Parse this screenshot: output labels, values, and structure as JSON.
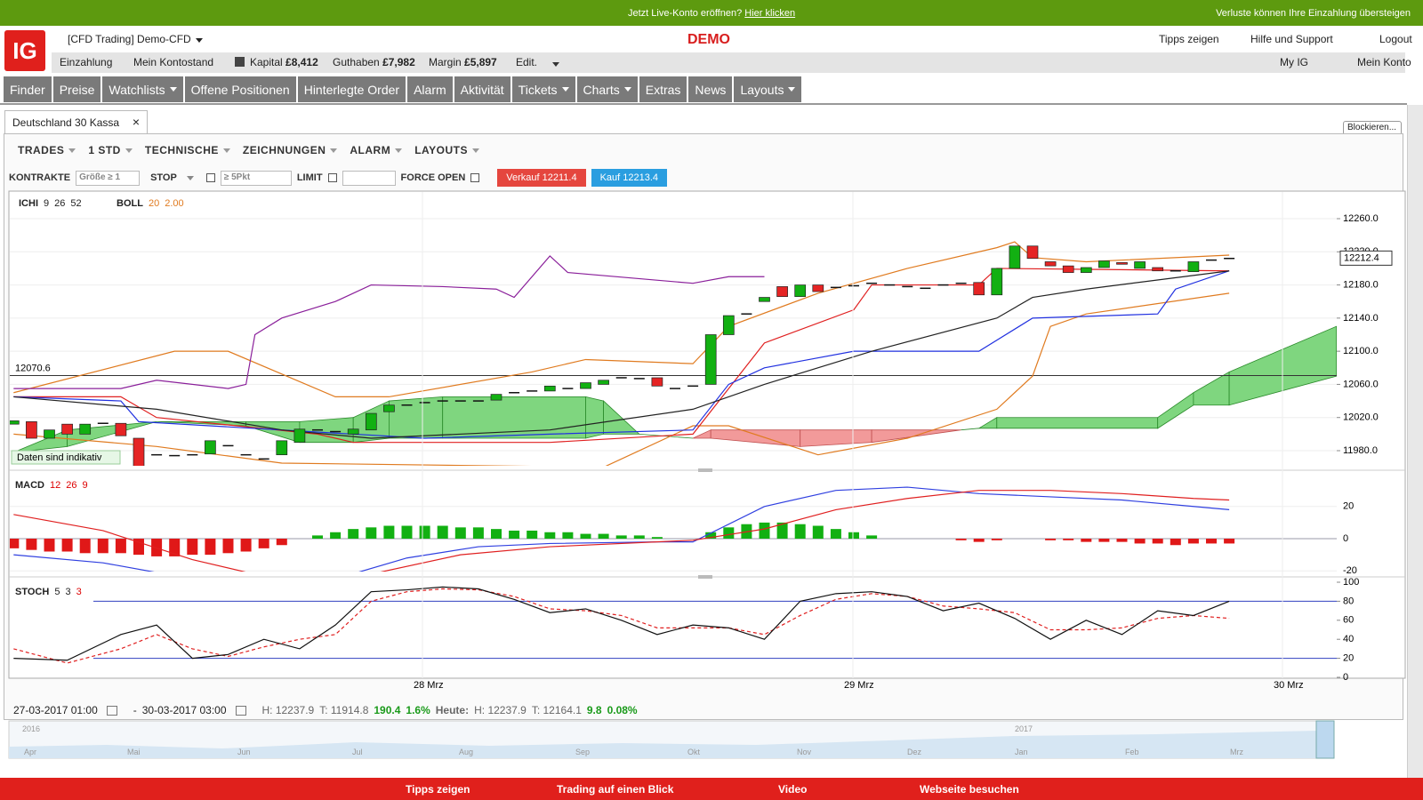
{
  "banner": {
    "text": "Jetzt Live-Konto eröffnen?",
    "link": "Hier klicken",
    "warning": "Verluste können Ihre Einzahlung übersteigen"
  },
  "header": {
    "logo": "IG",
    "account": "[CFD Trading] Demo-CFD",
    "mode": "DEMO",
    "links": [
      "Tipps zeigen",
      "Hilfe und Support",
      "Logout"
    ]
  },
  "account_bar": {
    "buttons": [
      "Einzahlung",
      "Mein Kontostand"
    ],
    "kapital_label": "Kapital",
    "kapital": "£8,412",
    "guthaben_label": "Guthaben",
    "guthaben": "£7,982",
    "margin_label": "Margin",
    "margin": "£5,897",
    "edit": "Edit.",
    "right": [
      "My IG",
      "Mein Konto"
    ]
  },
  "nav": [
    "Finder",
    "Preise",
    "Watchlists",
    "Offene Positionen",
    "Hinterlegte Order",
    "Alarm",
    "Aktivität",
    "Tickets",
    "Charts",
    "Extras",
    "News",
    "Layouts"
  ],
  "tab": "Deutschland 30 Kassa",
  "blockieren": "Blockieren...",
  "toolbar": [
    "TRADES",
    "1 STD",
    "TECHNISCHE",
    "ZEICHNUNGEN",
    "ALARM",
    "LAYOUTS"
  ],
  "order": {
    "kontrakte": "KONTRAKTE",
    "size_placeholder": "Größe ≥ 1",
    "stop": "STOP",
    "stop_placeholder": "≥ 5Pkt",
    "limit": "LIMIT",
    "force_open": "FORCE OPEN",
    "sell": "Verkauf 12211.4",
    "buy": "Kauf 12213.4"
  },
  "chart": {
    "ichi": {
      "name": "ICHI",
      "params": [
        9,
        26,
        52
      ]
    },
    "boll": {
      "name": "BOLL",
      "params": [
        20,
        "2.00"
      ]
    },
    "level": 12070.6,
    "note": "Daten sind indikativ",
    "current_price": 12212.4,
    "yticks": [
      {
        "value": 12260,
        "label": "12260.0"
      },
      {
        "value": 12220,
        "label": "12220.0"
      },
      {
        "value": 12180,
        "label": "12180.0"
      },
      {
        "value": 12140,
        "label": "12140.0"
      },
      {
        "value": 12100,
        "label": "12100.0"
      },
      {
        "value": 12060,
        "label": "12060.0"
      },
      {
        "value": 12020,
        "label": "12020.0"
      },
      {
        "value": 11980,
        "label": "11980.0"
      }
    ],
    "candles": [
      [
        12012,
        12016
      ],
      [
        12015,
        11995
      ],
      [
        11995,
        12005
      ],
      [
        12012,
        12000
      ],
      [
        12000,
        12012
      ],
      [
        12013,
        12013
      ],
      [
        12013,
        11998
      ],
      [
        11995,
        11958
      ],
      [
        11975,
        11975
      ],
      [
        11974,
        11974
      ],
      [
        11975,
        11975
      ],
      [
        11976,
        11992
      ],
      [
        11986,
        11986
      ],
      [
        11975,
        11975
      ],
      [
        11970,
        11970
      ],
      [
        11975,
        11992
      ],
      [
        11990,
        12006
      ],
      [
        12005,
        12005
      ],
      [
        12003,
        12003
      ],
      [
        12000,
        12006
      ],
      [
        12005,
        12025
      ],
      [
        12027,
        12035
      ],
      [
        12035,
        12035
      ],
      [
        12038,
        12038
      ],
      [
        12040,
        12040
      ],
      [
        12040,
        12040
      ],
      [
        12040,
        12040
      ],
      [
        12041,
        12048
      ],
      [
        12050,
        12050
      ],
      [
        12052,
        12052
      ],
      [
        12052,
        12058
      ],
      [
        12055,
        12055
      ],
      [
        12055,
        12062
      ],
      [
        12060,
        12065
      ],
      [
        12068,
        12068
      ],
      [
        12067,
        12067
      ],
      [
        12068,
        12058
      ],
      [
        12055,
        12055
      ],
      [
        12058,
        12058
      ],
      [
        12060,
        12120
      ],
      [
        12120,
        12143
      ],
      [
        12145,
        12145
      ],
      [
        12160,
        12165
      ],
      [
        12178,
        12166
      ],
      [
        12166,
        12180
      ],
      [
        12180,
        12172
      ],
      [
        12177,
        12177
      ],
      [
        12179,
        12179
      ],
      [
        12182,
        12182
      ],
      [
        12180,
        12180
      ],
      [
        12178,
        12178
      ],
      [
        12176,
        12176
      ],
      [
        12180,
        12180
      ],
      [
        12182,
        12182
      ],
      [
        12183,
        12168
      ],
      [
        12168,
        12200
      ],
      [
        12200,
        12227
      ],
      [
        12227,
        12212
      ],
      [
        12208,
        12203
      ],
      [
        12203,
        12195
      ],
      [
        12195,
        12201
      ],
      [
        12201,
        12209
      ],
      [
        12207,
        12205
      ],
      [
        12200,
        12208
      ],
      [
        12201,
        12197
      ],
      [
        12197,
        12197
      ],
      [
        12196,
        12208
      ],
      [
        12210,
        12210
      ],
      [
        12212,
        12212
      ]
    ],
    "cloud": [
      [
        0,
        11978,
        11978
      ],
      [
        3,
        12005,
        11985
      ],
      [
        8,
        12015,
        12015
      ],
      [
        13,
        12015,
        12010
      ],
      [
        16,
        12015,
        11990
      ],
      [
        19,
        12020,
        11990
      ],
      [
        21,
        12040,
        11995
      ],
      [
        24,
        12045,
        11995
      ],
      [
        32,
        12045,
        11995
      ],
      [
        33,
        12040,
        12000
      ],
      [
        35,
        12000,
        12000
      ],
      [
        38,
        11995,
        11995
      ],
      [
        39,
        11995,
        12005
      ],
      [
        44,
        11985,
        12005
      ],
      [
        48,
        11990,
        12005
      ],
      [
        53,
        12005,
        12005
      ],
      [
        54,
        12007,
        12007
      ],
      [
        55,
        12020,
        12007
      ],
      [
        64,
        12020,
        12007
      ],
      [
        66,
        12050,
        12035
      ],
      [
        68,
        12075,
        12035
      ],
      [
        74,
        12130,
        12070
      ]
    ],
    "lines": [
      {
        "color": "#e07b20",
        "points": [
          [
            0,
            12050
          ],
          [
            9,
            12100
          ],
          [
            12,
            12100
          ],
          [
            18,
            12045
          ],
          [
            21,
            12045
          ],
          [
            29,
            12075
          ],
          [
            32,
            12090
          ],
          [
            38,
            12085
          ],
          [
            40,
            12130
          ],
          [
            45,
            12170
          ],
          [
            50,
            12200
          ],
          [
            55,
            12225
          ],
          [
            56,
            12232
          ],
          [
            57,
            12213
          ],
          [
            60,
            12208
          ],
          [
            68,
            12216
          ]
        ]
      },
      {
        "color": "#e07b20",
        "points": [
          [
            0,
            12000
          ],
          [
            8,
            11985
          ],
          [
            15,
            11965
          ],
          [
            33,
            11960
          ],
          [
            38,
            12010
          ],
          [
            40,
            12010
          ],
          [
            45,
            11975
          ],
          [
            50,
            11995
          ],
          [
            55,
            12030
          ],
          [
            57,
            12070
          ],
          [
            58,
            12130
          ],
          [
            60,
            12145
          ],
          [
            68,
            12170
          ]
        ]
      },
      {
        "color": "#e02020",
        "points": [
          [
            0,
            12045
          ],
          [
            6,
            12045
          ],
          [
            8,
            12020
          ],
          [
            17,
            12000
          ],
          [
            19,
            11990
          ],
          [
            30,
            11990
          ],
          [
            38,
            12000
          ],
          [
            42,
            12110
          ],
          [
            47,
            12150
          ],
          [
            48,
            12180
          ],
          [
            54,
            12180
          ],
          [
            55,
            12200
          ],
          [
            68,
            12197
          ]
        ]
      },
      {
        "color": "#2030e0",
        "points": [
          [
            0,
            12045
          ],
          [
            6,
            12040
          ],
          [
            7,
            12015
          ],
          [
            23,
            11995
          ],
          [
            30,
            12000
          ],
          [
            38,
            12005
          ],
          [
            40,
            12060
          ],
          [
            42,
            12080
          ],
          [
            47,
            12100
          ],
          [
            54,
            12100
          ],
          [
            57,
            12140
          ],
          [
            64,
            12145
          ],
          [
            65,
            12175
          ],
          [
            68,
            12197
          ]
        ]
      },
      {
        "color": "#8a1f9a",
        "points": [
          [
            0,
            12055
          ],
          [
            6,
            12055
          ],
          [
            8,
            12065
          ],
          [
            12,
            12055
          ],
          [
            13,
            12060
          ],
          [
            13.5,
            12120
          ],
          [
            15,
            12140
          ],
          [
            18,
            12160
          ],
          [
            20,
            12180
          ],
          [
            24,
            12178
          ],
          [
            27,
            12175
          ],
          [
            28,
            12165
          ],
          [
            30,
            12215
          ],
          [
            31,
            12195
          ],
          [
            38,
            12182
          ],
          [
            40,
            12190
          ],
          [
            42,
            12190
          ]
        ]
      },
      {
        "color": "#222222",
        "points": [
          [
            0,
            12045
          ],
          [
            8,
            12030
          ],
          [
            15,
            12005
          ],
          [
            20,
            11995
          ],
          [
            30,
            12005
          ],
          [
            38,
            12030
          ],
          [
            42,
            12060
          ],
          [
            48,
            12100
          ],
          [
            55,
            12140
          ],
          [
            57,
            12165
          ],
          [
            60,
            12175
          ],
          [
            68,
            12197
          ]
        ]
      }
    ],
    "macd": {
      "name": "MACD",
      "params": [
        12,
        26,
        9
      ],
      "yticks": [
        20,
        0,
        -20
      ],
      "histogram": [
        -6,
        -7,
        -8,
        -8,
        -9,
        -9,
        -9,
        -10,
        -11,
        -11,
        -10,
        -10,
        -9,
        -8,
        -6,
        -4,
        0,
        2,
        4,
        6,
        7,
        8,
        8,
        8,
        8,
        7,
        7,
        6,
        5,
        5,
        4,
        4,
        3,
        3,
        2,
        2,
        1,
        0,
        0,
        4,
        7,
        9,
        10,
        10,
        9,
        8,
        6,
        4,
        2,
        0,
        0,
        0,
        0,
        -1,
        -2,
        -1,
        0,
        0,
        -1,
        -1,
        -2,
        -2,
        -2,
        -3,
        -3,
        -4,
        -3,
        -3,
        -3
      ],
      "macd_line": [
        [
          0,
          -10
        ],
        [
          5,
          -15
        ],
        [
          10,
          -25
        ],
        [
          14,
          -30
        ],
        [
          18,
          -25
        ],
        [
          22,
          -12
        ],
        [
          26,
          -5
        ],
        [
          30,
          -3
        ],
        [
          36,
          -2
        ],
        [
          38,
          -2
        ],
        [
          42,
          20
        ],
        [
          46,
          30
        ],
        [
          50,
          32
        ],
        [
          54,
          28
        ],
        [
          58,
          26
        ],
        [
          62,
          24
        ],
        [
          66,
          20
        ],
        [
          68,
          18
        ]
      ],
      "signal_line": [
        [
          0,
          15
        ],
        [
          5,
          5
        ],
        [
          10,
          -13
        ],
        [
          15,
          -26
        ],
        [
          20,
          -22
        ],
        [
          25,
          -10
        ],
        [
          30,
          -5
        ],
        [
          38,
          -1
        ],
        [
          42,
          6
        ],
        [
          46,
          18
        ],
        [
          50,
          25
        ],
        [
          54,
          30
        ],
        [
          58,
          30
        ],
        [
          62,
          28
        ],
        [
          66,
          25
        ],
        [
          68,
          24
        ]
      ]
    },
    "stoch": {
      "name": "STOCH",
      "params": [
        5,
        3,
        3
      ],
      "yticks": [
        100,
        80,
        60,
        40,
        20,
        0
      ],
      "levels": [
        80,
        20
      ],
      "k": [
        [
          0,
          20
        ],
        [
          3,
          18
        ],
        [
          6,
          45
        ],
        [
          8,
          55
        ],
        [
          10,
          20
        ],
        [
          12,
          24
        ],
        [
          14,
          40
        ],
        [
          16,
          30
        ],
        [
          18,
          55
        ],
        [
          20,
          90
        ],
        [
          22,
          92
        ],
        [
          24,
          95
        ],
        [
          26,
          93
        ],
        [
          28,
          82
        ],
        [
          30,
          68
        ],
        [
          32,
          72
        ],
        [
          34,
          60
        ],
        [
          36,
          45
        ],
        [
          38,
          55
        ],
        [
          40,
          52
        ],
        [
          42,
          40
        ],
        [
          44,
          80
        ],
        [
          46,
          88
        ],
        [
          48,
          90
        ],
        [
          50,
          85
        ],
        [
          52,
          70
        ],
        [
          54,
          78
        ],
        [
          56,
          62
        ],
        [
          58,
          40
        ],
        [
          60,
          60
        ],
        [
          62,
          45
        ],
        [
          64,
          70
        ],
        [
          66,
          65
        ],
        [
          68,
          80
        ]
      ],
      "d": [
        [
          0,
          30
        ],
        [
          3,
          15
        ],
        [
          6,
          30
        ],
        [
          8,
          45
        ],
        [
          10,
          30
        ],
        [
          12,
          22
        ],
        [
          14,
          32
        ],
        [
          16,
          40
        ],
        [
          18,
          45
        ],
        [
          20,
          80
        ],
        [
          22,
          90
        ],
        [
          24,
          93
        ],
        [
          26,
          92
        ],
        [
          28,
          85
        ],
        [
          30,
          72
        ],
        [
          32,
          70
        ],
        [
          34,
          65
        ],
        [
          36,
          52
        ],
        [
          38,
          52
        ],
        [
          40,
          52
        ],
        [
          42,
          45
        ],
        [
          44,
          65
        ],
        [
          46,
          82
        ],
        [
          48,
          88
        ],
        [
          50,
          85
        ],
        [
          52,
          75
        ],
        [
          54,
          72
        ],
        [
          56,
          68
        ],
        [
          58,
          50
        ],
        [
          60,
          50
        ],
        [
          62,
          52
        ],
        [
          64,
          62
        ],
        [
          66,
          65
        ],
        [
          68,
          62
        ]
      ]
    },
    "x_labels": [
      "28 Mrz",
      "29 Mrz",
      "30 Mrz"
    ]
  },
  "footer": {
    "from": "27-03-2017 01:00",
    "sep": "-",
    "to": "30-03-2017 03:00",
    "high": "H: 12237.9",
    "low": "T: 11914.8",
    "change": "190.4",
    "change_pct": "1.6%",
    "today": "Heute:",
    "today_high": "H: 12237.9",
    "today_low": "T: 12164.1",
    "today_change": "9.8",
    "today_pct": "0.08%"
  },
  "navigator": [
    "2016",
    "Apr",
    "Mai",
    "Jun",
    "Jul",
    "Aug",
    "Sep",
    "Okt",
    "Nov",
    "Dez",
    "2017",
    "Jan",
    "Feb",
    "Mrz"
  ],
  "bottom_bar": [
    "Tipps zeigen",
    "Trading auf einen Blick",
    "Video",
    "Webseite besuchen"
  ]
}
